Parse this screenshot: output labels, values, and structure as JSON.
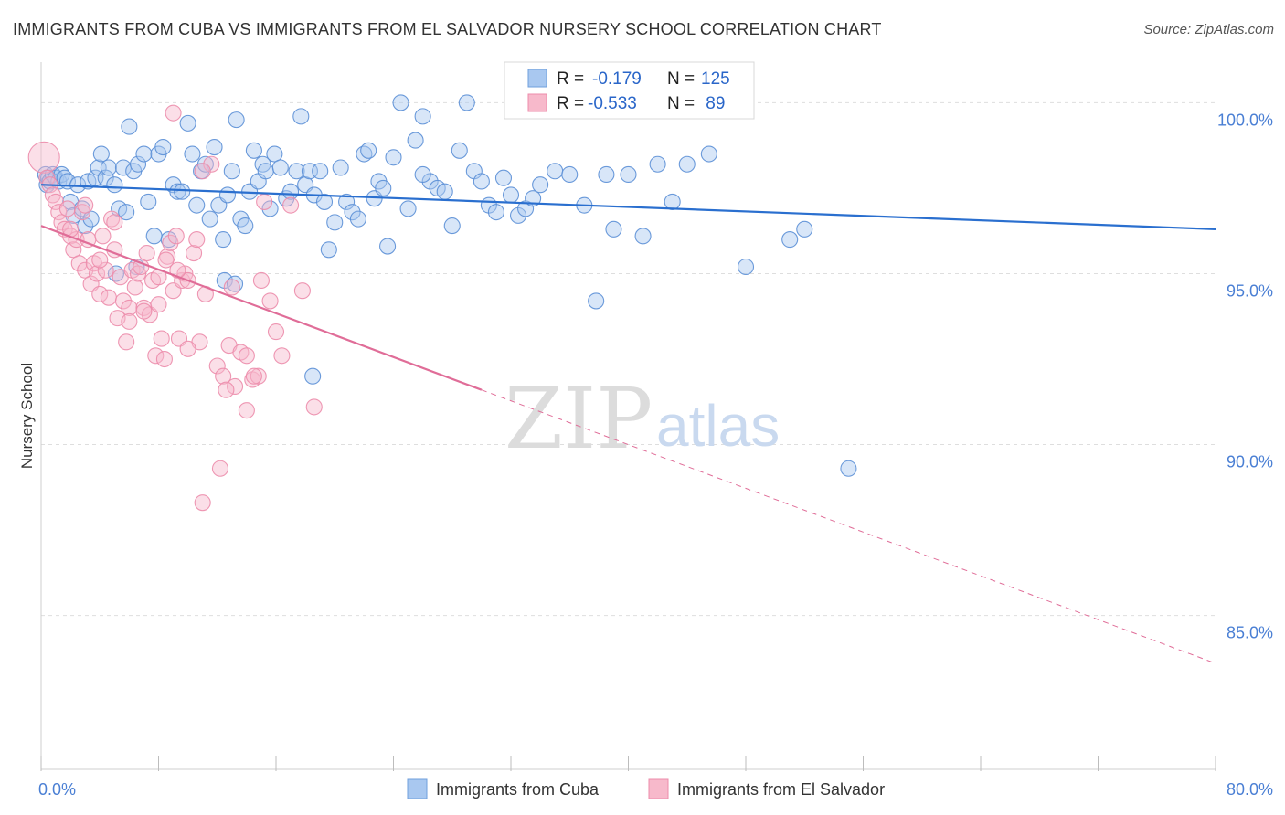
{
  "chart_data": {
    "type": "scatter",
    "title": "IMMIGRANTS FROM CUBA VS IMMIGRANTS FROM EL SALVADOR NURSERY SCHOOL CORRELATION CHART",
    "source": "Source: ZipAtlas.com",
    "ylabel": "Nursery School",
    "xlim": [
      0,
      80
    ],
    "ylim": [
      80.5,
      101.0
    ],
    "x_tick_labels": [
      "0.0%",
      "80.0%"
    ],
    "y_ticks": [
      {
        "value": 100,
        "label": "100.0%"
      },
      {
        "value": 95,
        "label": "95.0%"
      },
      {
        "value": 90,
        "label": "90.0%"
      },
      {
        "value": 85,
        "label": "85.0%"
      }
    ],
    "gridlines": true,
    "legend": {
      "placement": "bottom-center"
    },
    "stats": [
      {
        "r_label": "R =",
        "r_value": "-0.179",
        "n_label": "N =",
        "n_value": "125",
        "color": "#a9c8f0",
        "edge": "#6f9fdc"
      },
      {
        "r_label": "R =",
        "r_value": "-0.533",
        "n_label": "N =",
        "n_value": " 89",
        "color": "#f7b9cb",
        "edge": "#ec8cab"
      }
    ],
    "watermark": {
      "zip": "ZIP",
      "atlas": "atlas"
    },
    "series": [
      {
        "name": "Immigrants from Cuba",
        "color": "#a9c8f0",
        "edge": "#5b8fd6",
        "trend": {
          "x0": 0,
          "y0": 97.6,
          "x1": 80,
          "y1": 96.3,
          "color": "#2a6fcf"
        },
        "points": [
          [
            0.3,
            97.9
          ],
          [
            0.4,
            97.6
          ],
          [
            0.5,
            97.8
          ],
          [
            0.6,
            97.7
          ],
          [
            0.8,
            97.9
          ],
          [
            1.0,
            97.8
          ],
          [
            1.2,
            97.7
          ],
          [
            1.4,
            97.9
          ],
          [
            1.6,
            97.8
          ],
          [
            1.8,
            97.7
          ],
          [
            2.0,
            97.1
          ],
          [
            2.2,
            96.7
          ],
          [
            2.5,
            97.6
          ],
          [
            2.8,
            96.9
          ],
          [
            3.0,
            96.4
          ],
          [
            3.2,
            97.7
          ],
          [
            3.4,
            96.6
          ],
          [
            3.7,
            97.8
          ],
          [
            3.9,
            98.1
          ],
          [
            4.1,
            98.5
          ],
          [
            4.4,
            97.8
          ],
          [
            4.6,
            98.1
          ],
          [
            5.0,
            97.6
          ],
          [
            5.3,
            96.9
          ],
          [
            5.6,
            98.1
          ],
          [
            5.8,
            96.8
          ],
          [
            6.0,
            99.3
          ],
          [
            6.3,
            98.0
          ],
          [
            6.6,
            98.2
          ],
          [
            7.0,
            98.5
          ],
          [
            7.3,
            97.1
          ],
          [
            7.7,
            96.1
          ],
          [
            8.0,
            98.5
          ],
          [
            8.3,
            98.7
          ],
          [
            8.7,
            96.0
          ],
          [
            9.0,
            97.6
          ],
          [
            9.3,
            97.4
          ],
          [
            9.6,
            97.4
          ],
          [
            10.0,
            99.4
          ],
          [
            10.3,
            98.5
          ],
          [
            10.6,
            97.0
          ],
          [
            10.9,
            98.0
          ],
          [
            11.2,
            98.2
          ],
          [
            11.5,
            96.6
          ],
          [
            11.8,
            98.7
          ],
          [
            12.1,
            97.0
          ],
          [
            12.4,
            96.0
          ],
          [
            12.7,
            97.3
          ],
          [
            13.0,
            98.0
          ],
          [
            13.3,
            99.5
          ],
          [
            13.6,
            96.6
          ],
          [
            13.9,
            96.4
          ],
          [
            14.2,
            97.4
          ],
          [
            14.5,
            98.6
          ],
          [
            14.8,
            97.7
          ],
          [
            15.1,
            98.2
          ],
          [
            15.3,
            98.0
          ],
          [
            15.6,
            96.9
          ],
          [
            15.9,
            98.5
          ],
          [
            16.3,
            98.1
          ],
          [
            16.7,
            97.2
          ],
          [
            17.0,
            97.4
          ],
          [
            17.4,
            98.0
          ],
          [
            17.7,
            99.6
          ],
          [
            18.0,
            97.6
          ],
          [
            18.3,
            98.0
          ],
          [
            18.6,
            97.3
          ],
          [
            19.0,
            98.0
          ],
          [
            19.3,
            97.1
          ],
          [
            19.6,
            95.7
          ],
          [
            20.0,
            96.5
          ],
          [
            20.4,
            98.1
          ],
          [
            20.8,
            97.1
          ],
          [
            21.2,
            96.8
          ],
          [
            21.6,
            96.6
          ],
          [
            22.0,
            98.5
          ],
          [
            22.3,
            98.6
          ],
          [
            22.7,
            97.2
          ],
          [
            23.0,
            97.7
          ],
          [
            23.3,
            97.5
          ],
          [
            23.6,
            95.8
          ],
          [
            24.0,
            98.4
          ],
          [
            24.5,
            100.0
          ],
          [
            25.0,
            96.9
          ],
          [
            25.5,
            98.9
          ],
          [
            26.0,
            99.6
          ],
          [
            26.5,
            97.7
          ],
          [
            27.0,
            97.5
          ],
          [
            27.5,
            97.4
          ],
          [
            28.0,
            96.4
          ],
          [
            28.5,
            98.6
          ],
          [
            29.0,
            100.0
          ],
          [
            29.5,
            98.0
          ],
          [
            30.0,
            97.7
          ],
          [
            30.5,
            97.0
          ],
          [
            31.0,
            96.8
          ],
          [
            31.5,
            97.8
          ],
          [
            32.0,
            97.3
          ],
          [
            32.5,
            96.7
          ],
          [
            33.0,
            96.9
          ],
          [
            33.5,
            97.2
          ],
          [
            34.0,
            97.6
          ],
          [
            35.0,
            98.0
          ],
          [
            36.0,
            97.9
          ],
          [
            37.0,
            97.0
          ],
          [
            37.8,
            94.2
          ],
          [
            38.5,
            97.9
          ],
          [
            39.0,
            96.3
          ],
          [
            40.0,
            97.9
          ],
          [
            41.0,
            96.1
          ],
          [
            42.0,
            98.2
          ],
          [
            43.0,
            97.1
          ],
          [
            44.0,
            98.2
          ],
          [
            45.0,
            100.0
          ],
          [
            45.5,
            98.5
          ],
          [
            48.0,
            95.2
          ],
          [
            51.0,
            96.0
          ],
          [
            52.0,
            96.3
          ],
          [
            55.0,
            89.3
          ],
          [
            26.0,
            97.9
          ],
          [
            5.1,
            95.0
          ],
          [
            6.5,
            95.2
          ],
          [
            12.5,
            94.8
          ],
          [
            13.2,
            94.7
          ],
          [
            18.5,
            92.0
          ]
        ]
      },
      {
        "name": "Immigrants from El Salvador",
        "color": "#f7b9cb",
        "edge": "#ec8cab",
        "trend": {
          "x0": 0,
          "y0": 96.4,
          "x1": 30,
          "y1": 91.6,
          "color": "#e06d98"
        },
        "trend_extension": {
          "x0": 30,
          "y0": 91.6,
          "x1": 80,
          "y1": 83.6
        },
        "points": [
          [
            0.2,
            98.4
          ],
          [
            0.4,
            97.8
          ],
          [
            0.6,
            97.6
          ],
          [
            0.8,
            97.3
          ],
          [
            1.0,
            97.1
          ],
          [
            1.2,
            96.8
          ],
          [
            1.4,
            96.5
          ],
          [
            1.6,
            96.3
          ],
          [
            1.8,
            96.9
          ],
          [
            2.0,
            96.1
          ],
          [
            2.2,
            95.7
          ],
          [
            2.4,
            96.0
          ],
          [
            2.6,
            95.3
          ],
          [
            2.8,
            96.8
          ],
          [
            3.0,
            95.1
          ],
          [
            3.2,
            96.0
          ],
          [
            3.4,
            94.7
          ],
          [
            3.6,
            95.3
          ],
          [
            3.8,
            95.0
          ],
          [
            4.0,
            94.4
          ],
          [
            4.2,
            96.1
          ],
          [
            4.4,
            95.1
          ],
          [
            4.6,
            94.3
          ],
          [
            4.8,
            96.6
          ],
          [
            5.0,
            95.7
          ],
          [
            5.2,
            93.7
          ],
          [
            5.4,
            94.9
          ],
          [
            5.6,
            94.2
          ],
          [
            5.8,
            93.0
          ],
          [
            6.0,
            94.0
          ],
          [
            6.2,
            95.1
          ],
          [
            6.4,
            94.6
          ],
          [
            6.6,
            95.0
          ],
          [
            6.8,
            95.2
          ],
          [
            7.0,
            94.0
          ],
          [
            7.2,
            95.6
          ],
          [
            7.4,
            93.8
          ],
          [
            7.6,
            94.8
          ],
          [
            7.8,
            92.6
          ],
          [
            8.0,
            94.1
          ],
          [
            8.2,
            93.1
          ],
          [
            8.4,
            92.5
          ],
          [
            8.6,
            95.5
          ],
          [
            8.8,
            95.9
          ],
          [
            9.0,
            94.5
          ],
          [
            9.2,
            96.1
          ],
          [
            9.4,
            93.1
          ],
          [
            9.6,
            94.8
          ],
          [
            9.8,
            95.0
          ],
          [
            10.0,
            94.8
          ],
          [
            10.4,
            95.6
          ],
          [
            10.8,
            93.0
          ],
          [
            11.2,
            94.4
          ],
          [
            11.6,
            98.2
          ],
          [
            12.0,
            92.3
          ],
          [
            12.4,
            92.0
          ],
          [
            12.8,
            92.9
          ],
          [
            13.2,
            91.7
          ],
          [
            13.6,
            92.7
          ],
          [
            14.0,
            92.6
          ],
          [
            14.4,
            91.9
          ],
          [
            14.8,
            92.0
          ],
          [
            15.2,
            97.1
          ],
          [
            15.6,
            94.2
          ],
          [
            16.0,
            93.3
          ],
          [
            16.4,
            92.6
          ],
          [
            17.0,
            97.0
          ],
          [
            17.8,
            94.5
          ],
          [
            18.6,
            91.1
          ],
          [
            12.2,
            89.3
          ],
          [
            11.0,
            88.3
          ],
          [
            9.0,
            99.7
          ],
          [
            11.0,
            98.0
          ],
          [
            8.0,
            94.9
          ],
          [
            6.0,
            93.6
          ],
          [
            7.0,
            93.9
          ],
          [
            9.3,
            95.1
          ],
          [
            8.5,
            95.4
          ],
          [
            14.5,
            92.0
          ],
          [
            10.6,
            96.0
          ],
          [
            12.6,
            91.6
          ],
          [
            14.0,
            91.0
          ],
          [
            15.0,
            94.8
          ],
          [
            5.0,
            96.5
          ],
          [
            3.0,
            97.0
          ],
          [
            2.0,
            96.3
          ],
          [
            4.0,
            95.4
          ],
          [
            10.0,
            92.8
          ],
          [
            13.0,
            94.6
          ]
        ]
      }
    ]
  }
}
